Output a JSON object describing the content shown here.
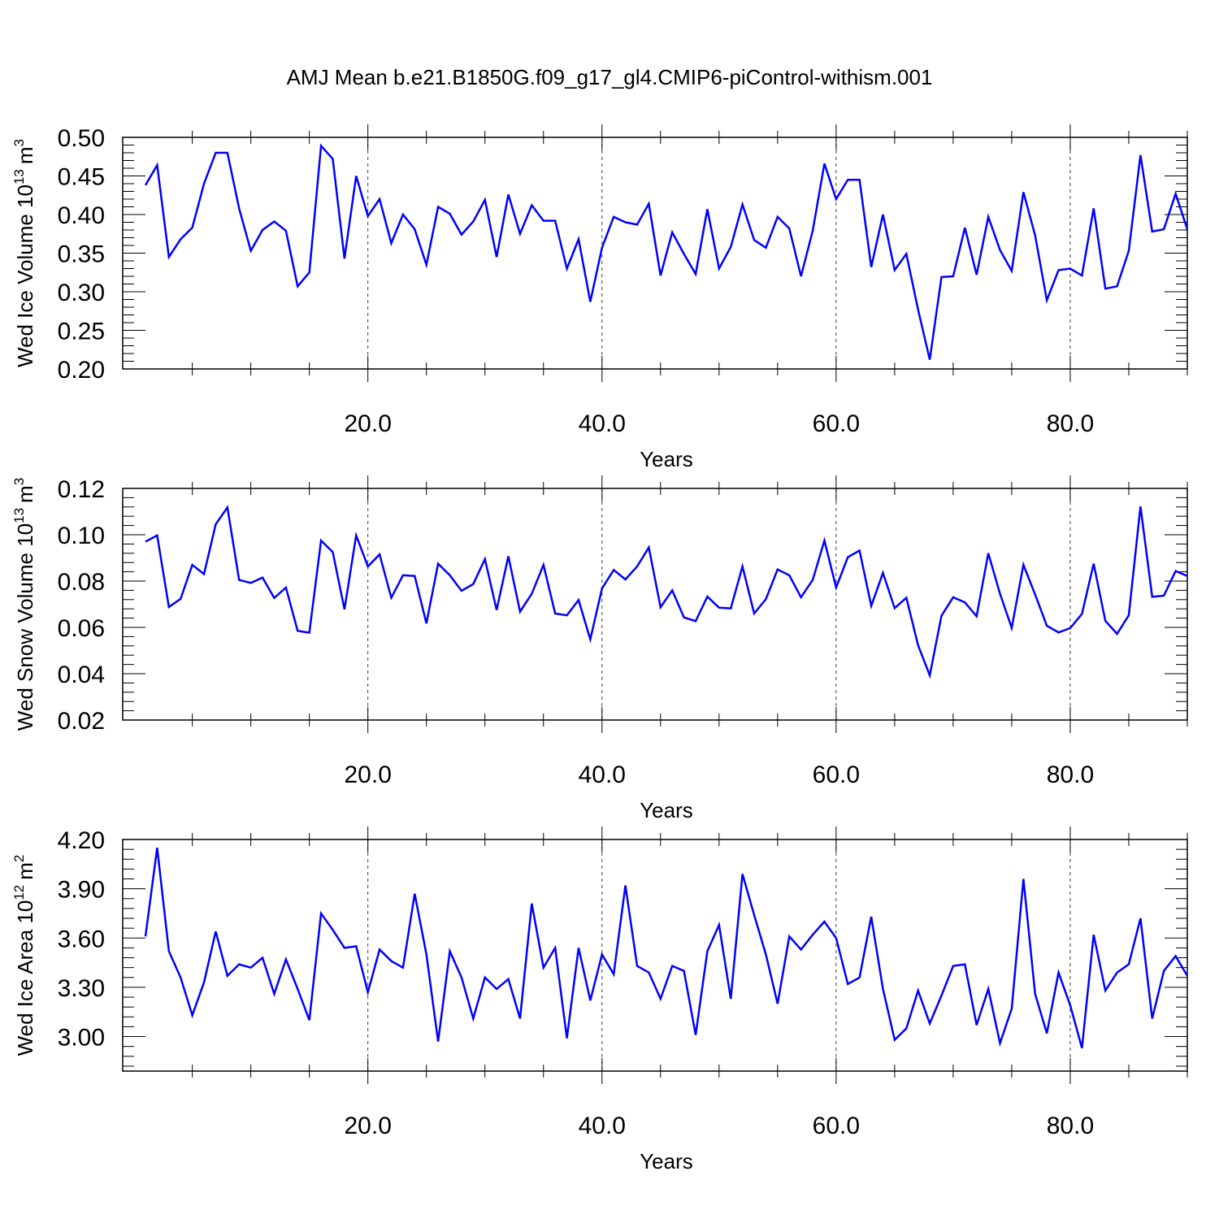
{
  "title": "AMJ Mean b.e21.B1850G.f09_g17_gl4.CMIP6-piControl-withism.001",
  "colors": {
    "series": "#0000ff",
    "axis": "#000000",
    "grid": "#000000"
  },
  "chart_data": [
    {
      "type": "line",
      "ylabel": "Wed Ice Volume 10",
      "ylabel_sup": "13",
      "ylabel_unit": "m",
      "ylabel_unit_sup": "3",
      "xlabel": "Years",
      "xlim": [
        1,
        90
      ],
      "ylim": [
        0.2,
        0.5
      ],
      "xticks": [
        20,
        40,
        60,
        80
      ],
      "xtick_labels": [
        "20.0",
        "40.0",
        "60.0",
        "80.0"
      ],
      "yticks": [
        0.2,
        0.25,
        0.3,
        0.35,
        0.4,
        0.45,
        0.5
      ],
      "ytick_labels": [
        "0.20",
        "0.25",
        "0.30",
        "0.35",
        "0.40",
        "0.45",
        "0.50"
      ],
      "grid": "vertical dashed at major x ticks",
      "values": [
        0.438,
        0.464,
        0.345,
        0.368,
        0.383,
        0.44,
        0.48,
        0.48,
        0.408,
        0.353,
        0.38,
        0.391,
        0.379,
        0.307,
        0.325,
        0.489,
        0.472,
        0.343,
        0.45,
        0.398,
        0.42,
        0.363,
        0.4,
        0.381,
        0.335,
        0.41,
        0.401,
        0.374,
        0.391,
        0.419,
        0.345,
        0.426,
        0.375,
        0.412,
        0.392,
        0.392,
        0.33,
        0.368,
        0.287,
        0.357,
        0.397,
        0.39,
        0.387,
        0.414,
        0.321,
        0.377,
        0.349,
        0.323,
        0.407,
        0.33,
        0.358,
        0.413,
        0.367,
        0.357,
        0.397,
        0.382,
        0.32,
        0.379,
        0.466,
        0.42,
        0.445,
        0.445,
        0.332,
        0.4,
        0.328,
        0.349,
        0.277,
        0.212,
        0.319,
        0.32,
        0.383,
        0.322,
        0.397,
        0.354,
        0.327,
        0.429,
        0.373,
        0.289,
        0.328,
        0.33,
        0.321,
        0.408,
        0.304,
        0.307,
        0.353,
        0.477,
        0.378,
        0.381,
        0.427,
        0.381
      ]
    },
    {
      "type": "line",
      "ylabel": "Wed Snow Volume 10",
      "ylabel_sup": "13",
      "ylabel_unit": "m",
      "ylabel_unit_sup": "3",
      "xlabel": "Years",
      "xlim": [
        1,
        90
      ],
      "ylim": [
        0.02,
        0.12
      ],
      "xticks": [
        20,
        40,
        60,
        80
      ],
      "xtick_labels": [
        "20.0",
        "40.0",
        "60.0",
        "80.0"
      ],
      "yticks": [
        0.02,
        0.04,
        0.06,
        0.08,
        0.1,
        0.12
      ],
      "ytick_labels": [
        "0.02",
        "0.04",
        "0.06",
        "0.08",
        "0.10",
        "0.12"
      ],
      "grid": "vertical dashed at major x ticks",
      "values": [
        0.097,
        0.0997,
        0.0688,
        0.0723,
        0.087,
        0.083,
        0.1045,
        0.1118,
        0.0805,
        0.0792,
        0.0815,
        0.0727,
        0.0772,
        0.0585,
        0.0577,
        0.0975,
        0.0925,
        0.0678,
        0.0997,
        0.0863,
        0.0915,
        0.0728,
        0.0825,
        0.0822,
        0.0617,
        0.0875,
        0.0825,
        0.0758,
        0.0787,
        0.0895,
        0.0675,
        0.0907,
        0.0668,
        0.0745,
        0.087,
        0.066,
        0.0652,
        0.0718,
        0.0548,
        0.0768,
        0.0848,
        0.0807,
        0.0863,
        0.0945,
        0.0687,
        0.076,
        0.0643,
        0.0627,
        0.0733,
        0.0685,
        0.0682,
        0.0863,
        0.066,
        0.0722,
        0.085,
        0.0825,
        0.073,
        0.0805,
        0.0975,
        0.0772,
        0.0903,
        0.0932,
        0.0693,
        0.0835,
        0.0683,
        0.0728,
        0.0523,
        0.0393,
        0.065,
        0.073,
        0.0708,
        0.0648,
        0.092,
        0.0745,
        0.0598,
        0.087,
        0.0742,
        0.0607,
        0.0578,
        0.0597,
        0.0658,
        0.0875,
        0.0628,
        0.0572,
        0.0652,
        0.1122,
        0.0732,
        0.0737,
        0.0843,
        0.0822
      ]
    },
    {
      "type": "line",
      "ylabel": "Wed Ice Area 10",
      "ylabel_sup": "12",
      "ylabel_unit": "m",
      "ylabel_unit_sup": "2",
      "xlabel": "Years",
      "xlim": [
        1,
        90
      ],
      "ylim": [
        2.79,
        4.2
      ],
      "xticks": [
        20,
        40,
        60,
        80
      ],
      "xtick_labels": [
        "20.0",
        "40.0",
        "60.0",
        "80.0"
      ],
      "yticks": [
        3.0,
        3.3,
        3.6,
        3.9,
        4.2
      ],
      "ytick_labels": [
        "3.00",
        "3.30",
        "3.60",
        "3.90",
        "4.20"
      ],
      "grid": "vertical dashed at major x ticks",
      "values": [
        3.61,
        4.15,
        3.52,
        3.36,
        3.13,
        3.33,
        3.64,
        3.37,
        3.44,
        3.42,
        3.48,
        3.26,
        3.47,
        3.29,
        3.1,
        3.75,
        3.65,
        3.54,
        3.55,
        3.27,
        3.53,
        3.46,
        3.42,
        3.87,
        3.5,
        2.97,
        3.52,
        3.36,
        3.11,
        3.36,
        3.29,
        3.35,
        3.11,
        3.81,
        3.42,
        3.54,
        2.99,
        3.54,
        3.22,
        3.5,
        3.38,
        3.92,
        3.43,
        3.39,
        3.23,
        3.43,
        3.4,
        3.01,
        3.52,
        3.68,
        3.23,
        3.99,
        3.74,
        3.5,
        3.2,
        3.61,
        3.53,
        3.62,
        3.7,
        3.6,
        3.32,
        3.36,
        3.73,
        3.29,
        2.98,
        3.05,
        3.28,
        3.08,
        3.25,
        3.43,
        3.44,
        3.07,
        3.29,
        2.96,
        3.17,
        3.96,
        3.26,
        3.02,
        3.39,
        3.19,
        2.93,
        3.62,
        3.28,
        3.39,
        3.44,
        3.72,
        3.11,
        3.4,
        3.49,
        3.37
      ]
    }
  ]
}
